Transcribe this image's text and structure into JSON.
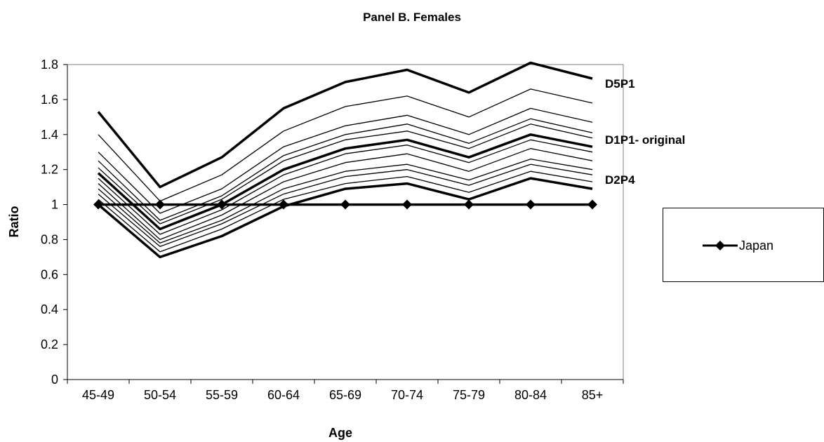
{
  "chart_data": {
    "type": "line",
    "title": "Panel B. Females",
    "xlabel": "Age",
    "ylabel": "Ratio",
    "categories": [
      "45-49",
      "50-54",
      "55-59",
      "60-64",
      "65-69",
      "70-74",
      "75-79",
      "80-84",
      "85+"
    ],
    "ylim": [
      0,
      1.8
    ],
    "yticks": [
      "0",
      "0.2",
      "0.4",
      "0.6",
      "0.8",
      "1",
      "1.2",
      "1.4",
      "1.6",
      "1.8"
    ],
    "grid": false,
    "legend_position": "right",
    "legend": [
      {
        "name": "Japan",
        "marker": "diamond"
      }
    ],
    "series": [
      {
        "name": "D5P1",
        "values": [
          1.53,
          1.1,
          1.27,
          1.55,
          1.7,
          1.77,
          1.64,
          1.81,
          1.72
        ],
        "weight": "bold"
      },
      {
        "values": [
          1.4,
          1.02,
          1.17,
          1.42,
          1.56,
          1.62,
          1.5,
          1.66,
          1.58
        ],
        "weight": "thin"
      },
      {
        "values": [
          1.3,
          0.95,
          1.09,
          1.33,
          1.45,
          1.51,
          1.4,
          1.55,
          1.47
        ],
        "weight": "thin"
      },
      {
        "values": [
          1.25,
          0.91,
          1.05,
          1.28,
          1.4,
          1.46,
          1.35,
          1.49,
          1.41
        ],
        "weight": "thin"
      },
      {
        "values": [
          1.21,
          0.89,
          1.03,
          1.25,
          1.37,
          1.42,
          1.32,
          1.46,
          1.38
        ],
        "weight": "thin"
      },
      {
        "name": "D1P1- original",
        "values": [
          1.18,
          0.86,
          1.0,
          1.2,
          1.32,
          1.37,
          1.27,
          1.4,
          1.33
        ],
        "weight": "bold"
      },
      {
        "values": [
          1.15,
          0.83,
          0.97,
          1.17,
          1.29,
          1.34,
          1.24,
          1.37,
          1.3
        ],
        "weight": "thin"
      },
      {
        "values": [
          1.12,
          0.8,
          0.94,
          1.13,
          1.24,
          1.29,
          1.19,
          1.32,
          1.25
        ],
        "weight": "thin"
      },
      {
        "values": [
          1.09,
          0.78,
          0.91,
          1.09,
          1.19,
          1.23,
          1.14,
          1.26,
          1.2
        ],
        "weight": "thin"
      },
      {
        "values": [
          1.06,
          0.76,
          0.89,
          1.06,
          1.16,
          1.2,
          1.11,
          1.23,
          1.17
        ],
        "weight": "thin"
      },
      {
        "values": [
          1.03,
          0.73,
          0.86,
          1.03,
          1.12,
          1.16,
          1.07,
          1.19,
          1.13
        ],
        "weight": "thin"
      },
      {
        "name": "D2P4",
        "values": [
          1.0,
          0.7,
          0.82,
          0.99,
          1.09,
          1.12,
          1.03,
          1.15,
          1.09
        ],
        "weight": "bold"
      },
      {
        "name": "Japan",
        "values": [
          1,
          1,
          1,
          1,
          1,
          1,
          1,
          1,
          1
        ],
        "weight": "bold",
        "marker": "diamond"
      }
    ]
  }
}
